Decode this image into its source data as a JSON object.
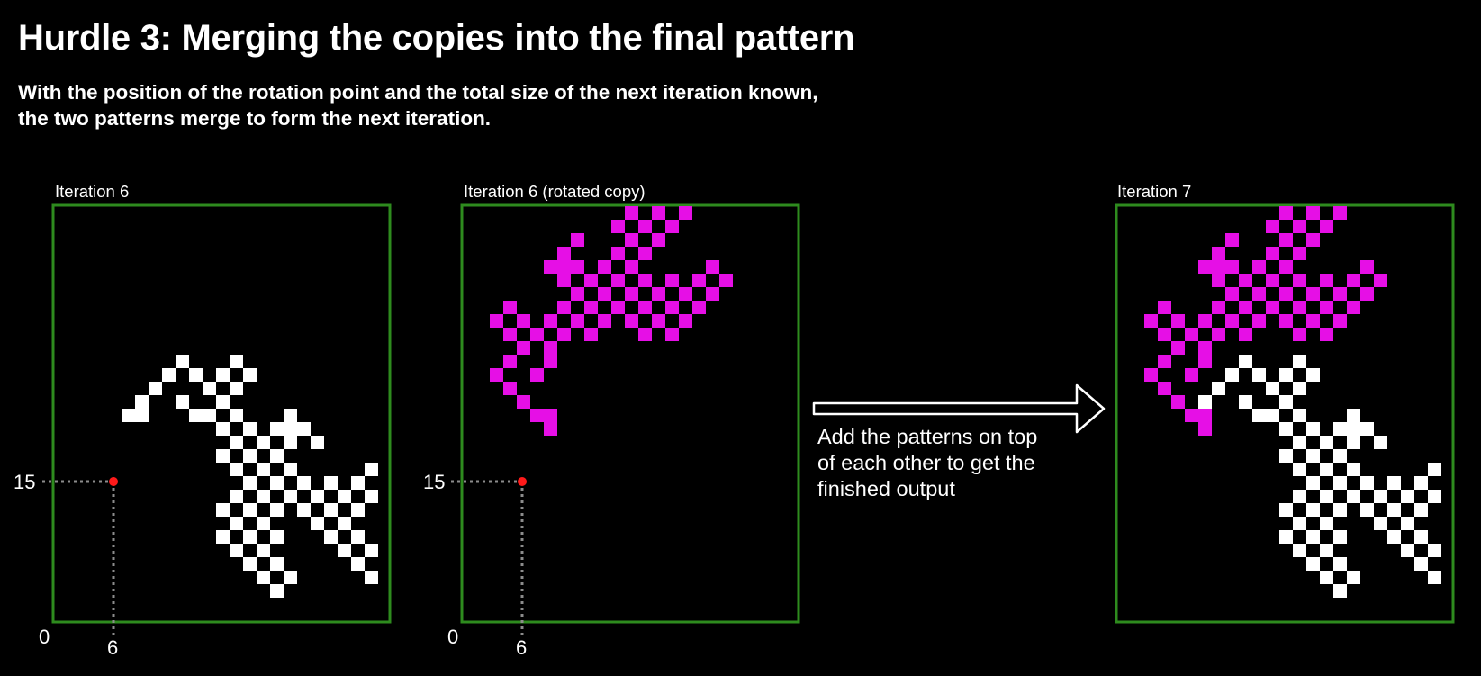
{
  "title": "Hurdle 3: Merging the copies into the final pattern",
  "subtitle_lines": [
    "With the position of the rotation point and the total size of the next iteration known,",
    "the two patterns merge to form the next iteration."
  ],
  "caption_lines": [
    "Add the patterns on top",
    "of each other to get the",
    "finished output"
  ],
  "colors": {
    "background": "#000000",
    "frame": "#2e8b1e",
    "original": "#ffffff",
    "rotated": "#e60fe6",
    "point": "#ff1a1a",
    "guide": "#8c8c8c"
  },
  "panels": [
    {
      "label": "Iteration 6",
      "content": "original",
      "markers": {
        "y_label": "15",
        "x_label": "6",
        "origin_label": "0"
      }
    },
    {
      "label": "Iteration 6 (rotated copy)",
      "content": "rotated",
      "markers": {
        "y_label": "15",
        "x_label": "6",
        "origin_label": "0"
      }
    },
    {
      "label": "Iteration 7",
      "content": "merged",
      "markers": null
    }
  ],
  "rotation_point": {
    "col": 6,
    "row": 15
  },
  "arrow_icon": "right-arrow-icon",
  "cells_original": [
    [
      8,
      12
    ],
    [
      9,
      11
    ],
    [
      10,
      12
    ],
    [
      11,
      13
    ],
    [
      12,
      12
    ],
    [
      13,
      11
    ],
    [
      14,
      12
    ],
    [
      13,
      13
    ],
    [
      12,
      14
    ],
    [
      7,
      13
    ],
    [
      6,
      14
    ],
    [
      6,
      15
    ],
    [
      5,
      15
    ],
    [
      13,
      15
    ],
    [
      14,
      16
    ],
    [
      15,
      17
    ],
    [
      16,
      16
    ],
    [
      17,
      15
    ],
    [
      18,
      16
    ],
    [
      17,
      17
    ],
    [
      16,
      18
    ],
    [
      15,
      19
    ],
    [
      14,
      18
    ],
    [
      13,
      19
    ],
    [
      14,
      20
    ],
    [
      15,
      21
    ],
    [
      16,
      20
    ],
    [
      17,
      19
    ],
    [
      18,
      20
    ],
    [
      19,
      21
    ],
    [
      20,
      22
    ],
    [
      21,
      21
    ],
    [
      22,
      20
    ],
    [
      23,
      21
    ],
    [
      22,
      22
    ],
    [
      21,
      23
    ],
    [
      20,
      24
    ],
    [
      19,
      23
    ],
    [
      18,
      22
    ],
    [
      17,
      21
    ],
    [
      16,
      22
    ],
    [
      15,
      23
    ],
    [
      14,
      24
    ],
    [
      13,
      23
    ],
    [
      12,
      24
    ],
    [
      13,
      25
    ],
    [
      14,
      26
    ],
    [
      15,
      27
    ],
    [
      16,
      28
    ],
    [
      17,
      27
    ],
    [
      16,
      26
    ],
    [
      15,
      25
    ],
    [
      21,
      25
    ],
    [
      22,
      26
    ],
    [
      23,
      27
    ],
    [
      24,
      28
    ],
    [
      25,
      27
    ],
    [
      24,
      26
    ],
    [
      23,
      25
    ],
    [
      24,
      24
    ],
    [
      25,
      23
    ],
    [
      26,
      22
    ],
    [
      27,
      21
    ],
    [
      28,
      22
    ],
    [
      29,
      23
    ],
    [
      30,
      22
    ],
    [
      31,
      21
    ],
    [
      32,
      20
    ],
    [
      31,
      19
    ],
    [
      30,
      18
    ],
    [
      29,
      17
    ],
    [
      30,
      16
    ],
    [
      31,
      15
    ],
    [
      32,
      16
    ],
    [
      30,
      14
    ],
    [
      29,
      13
    ],
    [
      28,
      13
    ],
    [
      27,
      14
    ],
    [
      28,
      15
    ],
    [
      29,
      15
    ],
    [
      31,
      17
    ],
    [
      32,
      18
    ],
    [
      31,
      21
    ],
    [
      32,
      22
    ],
    [
      31,
      23
    ],
    [
      30,
      23
    ],
    [
      29,
      21
    ],
    [
      28,
      20
    ],
    [
      27,
      19
    ],
    [
      26,
      20
    ],
    [
      25,
      21
    ],
    [
      26,
      21
    ],
    [
      22,
      24
    ],
    [
      20,
      20
    ],
    [
      14,
      22
    ],
    [
      16,
      24
    ],
    [
      23,
      19
    ],
    [
      24,
      20
    ],
    [
      25,
      19
    ],
    [
      26,
      19
    ],
    [
      12,
      22
    ],
    [
      13,
      21
    ],
    [
      12,
      18
    ],
    [
      13,
      17
    ],
    [
      17,
      16
    ],
    [
      19,
      17
    ],
    [
      12,
      16
    ],
    [
      11,
      15
    ],
    [
      10,
      15
    ],
    [
      9,
      14
    ]
  ]
}
